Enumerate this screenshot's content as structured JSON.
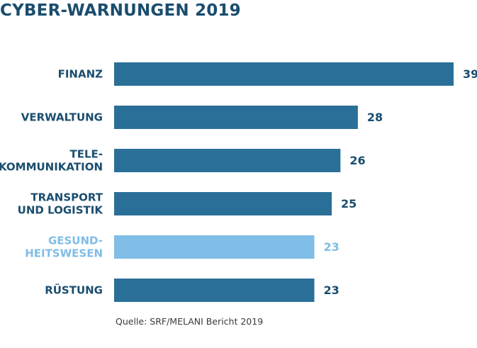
{
  "colors": {
    "title": "#1a4d6e",
    "bar": "#2a6f97",
    "highlight_bar": "#7fbde6",
    "label": "#1a4d6e",
    "highlight_label": "#7fbde6",
    "source": "#3a3a3a"
  },
  "source": "Quelle: SRF/MELANI Bericht 2019",
  "chart_data": {
    "type": "bar",
    "orientation": "horizontal",
    "title": "CYBER-WARNUNGEN 2019",
    "xlabel": "",
    "ylabel": "",
    "xlim": [
      0,
      39
    ],
    "grid": false,
    "legend": "none",
    "categories": [
      [
        "FINANZ"
      ],
      [
        "VERWALTUNG"
      ],
      [
        "TELE-",
        "KOMMUNIKATION"
      ],
      [
        "TRANSPORT",
        "UND LOGISTIK"
      ],
      [
        "GESUND-",
        "HEITSWESEN"
      ],
      [
        "RÜSTUNG"
      ]
    ],
    "values": [
      39,
      28,
      26,
      25,
      23,
      23
    ],
    "value_labels": [
      "39",
      "28",
      "26",
      "25",
      "23",
      "23"
    ],
    "highlight_index": 4
  }
}
